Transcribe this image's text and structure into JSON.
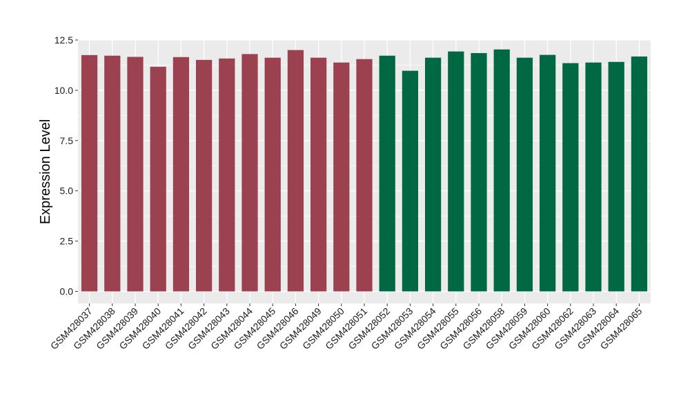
{
  "chart_data": {
    "type": "bar",
    "title": "",
    "xlabel": "",
    "ylabel": "Expression Level",
    "ylim": [
      -0.6,
      12.5
    ],
    "yticks": [
      "0.0",
      "2.5",
      "5.0",
      "7.5",
      "10.0",
      "12.5"
    ],
    "grid": true,
    "background": "#EBEBEB",
    "gridline_color": "#FFFFFF",
    "categories": [
      "GSM428037",
      "GSM428038",
      "GSM428039",
      "GSM428040",
      "GSM428041",
      "GSM428042",
      "GSM428043",
      "GSM428044",
      "GSM428045",
      "GSM428046",
      "GSM428049",
      "GSM428050",
      "GSM428051",
      "GSM428052",
      "GSM428053",
      "GSM428054",
      "GSM428055",
      "GSM428056",
      "GSM428058",
      "GSM428059",
      "GSM428060",
      "GSM428062",
      "GSM428063",
      "GSM428064",
      "GSM428065"
    ],
    "values": [
      11.75,
      11.72,
      11.66,
      11.17,
      11.65,
      11.51,
      11.58,
      11.8,
      11.62,
      12.0,
      11.62,
      11.38,
      11.55,
      11.72,
      10.97,
      11.62,
      11.93,
      11.85,
      12.03,
      11.62,
      11.76,
      11.35,
      11.38,
      11.41,
      11.68
    ],
    "groups": [
      {
        "color": "#9B4150",
        "count": 13
      },
      {
        "color": "#006843",
        "count": 12
      }
    ]
  }
}
